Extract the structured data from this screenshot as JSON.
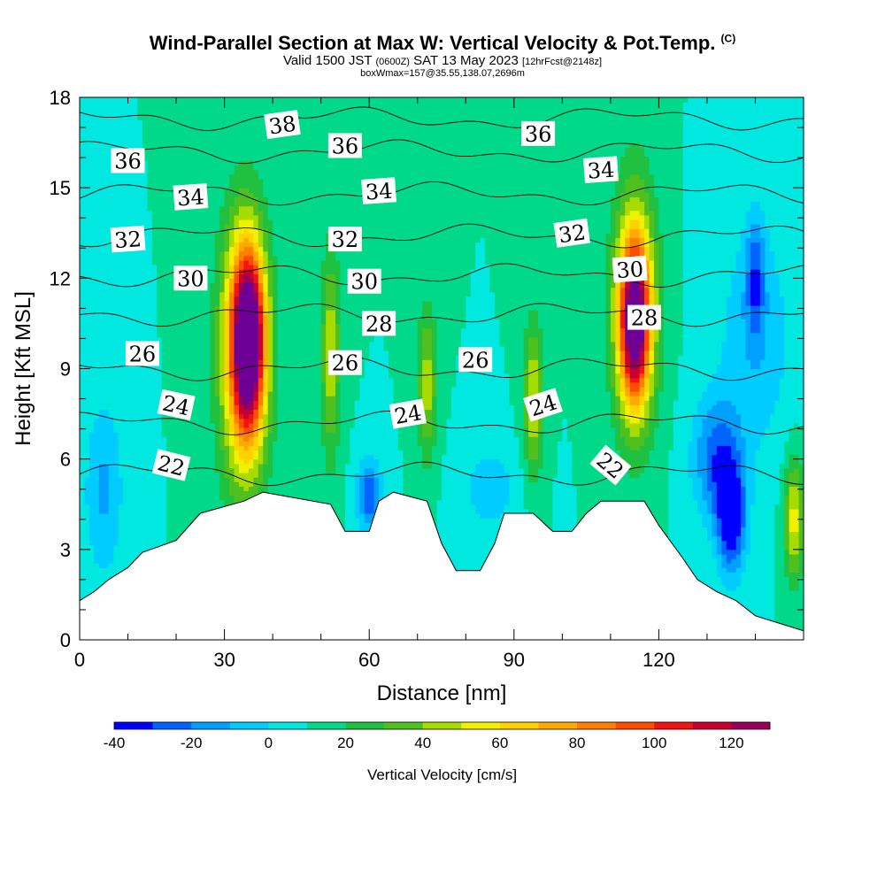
{
  "header": {
    "title": "Wind-Parallel Section at Max W: Vertical Velocity & Pot.Temp.",
    "copyright": "(C)",
    "valid_prefix": "Valid 1500 JST",
    "valid_utc": "(0600Z)",
    "valid_date": "SAT 13 May 2023",
    "forecast": "[12hrFcst@2148z]",
    "box_info": "boxWmax=157@35.55,138.07,2696m"
  },
  "chart_data": {
    "type": "heatmap",
    "xlabel": "Distance [nm]",
    "ylabel": "Height [Kft MSL]",
    "xlim": [
      0,
      150
    ],
    "ylim": [
      0,
      18
    ],
    "xticks": [
      0,
      30,
      60,
      90,
      120
    ],
    "yticks": [
      0,
      3,
      6,
      9,
      12,
      15,
      18
    ],
    "colorbar": {
      "label": "Vertical Velocity [cm/s]",
      "ticks": [
        -40,
        -20,
        0,
        20,
        40,
        60,
        80,
        100,
        120
      ],
      "bins": [
        -40,
        -30,
        -20,
        -10,
        0,
        10,
        20,
        30,
        40,
        50,
        60,
        70,
        80,
        90,
        100,
        110,
        120,
        130
      ],
      "colors": [
        "#0000ff",
        "#0064ff",
        "#00a0ff",
        "#00ccff",
        "#00e8e0",
        "#00d98a",
        "#20c040",
        "#50c020",
        "#a8dc00",
        "#f0f000",
        "#ffd200",
        "#ffaa00",
        "#ff7f00",
        "#ff4c00",
        "#f01414",
        "#c80032",
        "#96005a",
        "#6e0096"
      ]
    },
    "background_value": 10,
    "cells": [
      {
        "x": 35,
        "y": 10,
        "sx": 3.2,
        "sy": 2.8,
        "value": 122
      },
      {
        "x": 34,
        "y": 9.5,
        "sx": 5,
        "sy": 4.5,
        "value": 80
      },
      {
        "x": 115,
        "y": 10.5,
        "sx": 3,
        "sy": 2.5,
        "value": 102
      },
      {
        "x": 115,
        "y": 11,
        "sx": 4.5,
        "sy": 4,
        "value": 72
      },
      {
        "x": 52,
        "y": 9.5,
        "sx": 2,
        "sy": 3.5,
        "value": 48
      },
      {
        "x": 72,
        "y": 8.5,
        "sx": 2,
        "sy": 2.5,
        "value": 46
      },
      {
        "x": 94,
        "y": 8,
        "sx": 2,
        "sy": 2.5,
        "value": 52
      },
      {
        "x": 148,
        "y": 4,
        "sx": 2,
        "sy": 2,
        "value": 55
      },
      {
        "x": 135,
        "y": 4,
        "sx": 3,
        "sy": 1.8,
        "value": -42
      },
      {
        "x": 132,
        "y": 6,
        "sx": 5,
        "sy": 2,
        "value": -25
      },
      {
        "x": 60,
        "y": 4.8,
        "sx": 2.5,
        "sy": 1.2,
        "value": -28
      },
      {
        "x": 5,
        "y": 5,
        "sx": 4,
        "sy": 3,
        "value": -12
      },
      {
        "x": 85,
        "y": 5,
        "sx": 6,
        "sy": 1.5,
        "value": -6
      },
      {
        "x": 140,
        "y": 10,
        "sx": 8,
        "sy": 4,
        "value": -8
      },
      {
        "x": 140,
        "y": 12,
        "sx": 2,
        "sy": 2,
        "value": -20
      }
    ],
    "terrain": [
      [
        0,
        1.3
      ],
      [
        3,
        1.6
      ],
      [
        6,
        2.0
      ],
      [
        10,
        2.4
      ],
      [
        13,
        2.9
      ],
      [
        20,
        3.3
      ],
      [
        25,
        4.2
      ],
      [
        34,
        4.6
      ],
      [
        38,
        4.9
      ],
      [
        52,
        4.5
      ],
      [
        55,
        3.6
      ],
      [
        60,
        3.6
      ],
      [
        62,
        4.6
      ],
      [
        65,
        4.9
      ],
      [
        72,
        4.6
      ],
      [
        75,
        3.2
      ],
      [
        78,
        2.3
      ],
      [
        83,
        2.3
      ],
      [
        86,
        3.2
      ],
      [
        88,
        4.2
      ],
      [
        94,
        4.2
      ],
      [
        98,
        3.6
      ],
      [
        102,
        3.6
      ],
      [
        105,
        4.2
      ],
      [
        108,
        4.6
      ],
      [
        117,
        4.6
      ],
      [
        120,
        3.8
      ],
      [
        125,
        2.7
      ],
      [
        128,
        2.0
      ],
      [
        132,
        1.6
      ],
      [
        136,
        1.3
      ],
      [
        140,
        0.8
      ],
      [
        150,
        0.3
      ]
    ],
    "isentropes": [
      {
        "value": 22,
        "level": 5.5
      },
      {
        "value": 24,
        "level": 7.2
      },
      {
        "value": 26,
        "level": 9.0
      },
      {
        "value": 28,
        "level": 10.8
      },
      {
        "value": 30,
        "level": 12.1
      },
      {
        "value": 32,
        "level": 13.4
      },
      {
        "value": 34,
        "level": 14.8
      },
      {
        "value": 36,
        "level": 16.2
      },
      {
        "value": 38,
        "level": 17.3
      }
    ],
    "contour_labels": [
      {
        "text": "38",
        "x": 42,
        "y": 17.1,
        "rot": -8
      },
      {
        "text": "36",
        "x": 10,
        "y": 15.9,
        "rot": 0
      },
      {
        "text": "36",
        "x": 55,
        "y": 16.4,
        "rot": 0
      },
      {
        "text": "36",
        "x": 95,
        "y": 16.8,
        "rot": 0
      },
      {
        "text": "34",
        "x": 23,
        "y": 14.7,
        "rot": -4
      },
      {
        "text": "34",
        "x": 62,
        "y": 14.9,
        "rot": -4
      },
      {
        "text": "34",
        "x": 108,
        "y": 15.6,
        "rot": -4
      },
      {
        "text": "32",
        "x": 10,
        "y": 13.3,
        "rot": -4
      },
      {
        "text": "32",
        "x": 55,
        "y": 13.3,
        "rot": 0
      },
      {
        "text": "32",
        "x": 102,
        "y": 13.5,
        "rot": -8
      },
      {
        "text": "30",
        "x": 23,
        "y": 12.0,
        "rot": 0
      },
      {
        "text": "30",
        "x": 59,
        "y": 11.9,
        "rot": 0
      },
      {
        "text": "30",
        "x": 114,
        "y": 12.3,
        "rot": -4
      },
      {
        "text": "28",
        "x": 62,
        "y": 10.5,
        "rot": 0
      },
      {
        "text": "28",
        "x": 117,
        "y": 10.7,
        "rot": 0
      },
      {
        "text": "26",
        "x": 13,
        "y": 9.5,
        "rot": 0
      },
      {
        "text": "26",
        "x": 55,
        "y": 9.2,
        "rot": 0
      },
      {
        "text": "26",
        "x": 82,
        "y": 9.3,
        "rot": 0
      },
      {
        "text": "24",
        "x": 20,
        "y": 7.8,
        "rot": 12
      },
      {
        "text": "24",
        "x": 68,
        "y": 7.5,
        "rot": -10
      },
      {
        "text": "24",
        "x": 96,
        "y": 7.8,
        "rot": -18
      },
      {
        "text": "22",
        "x": 19,
        "y": 5.8,
        "rot": 14
      },
      {
        "text": "22",
        "x": 110,
        "y": 5.8,
        "rot": 40
      }
    ]
  }
}
